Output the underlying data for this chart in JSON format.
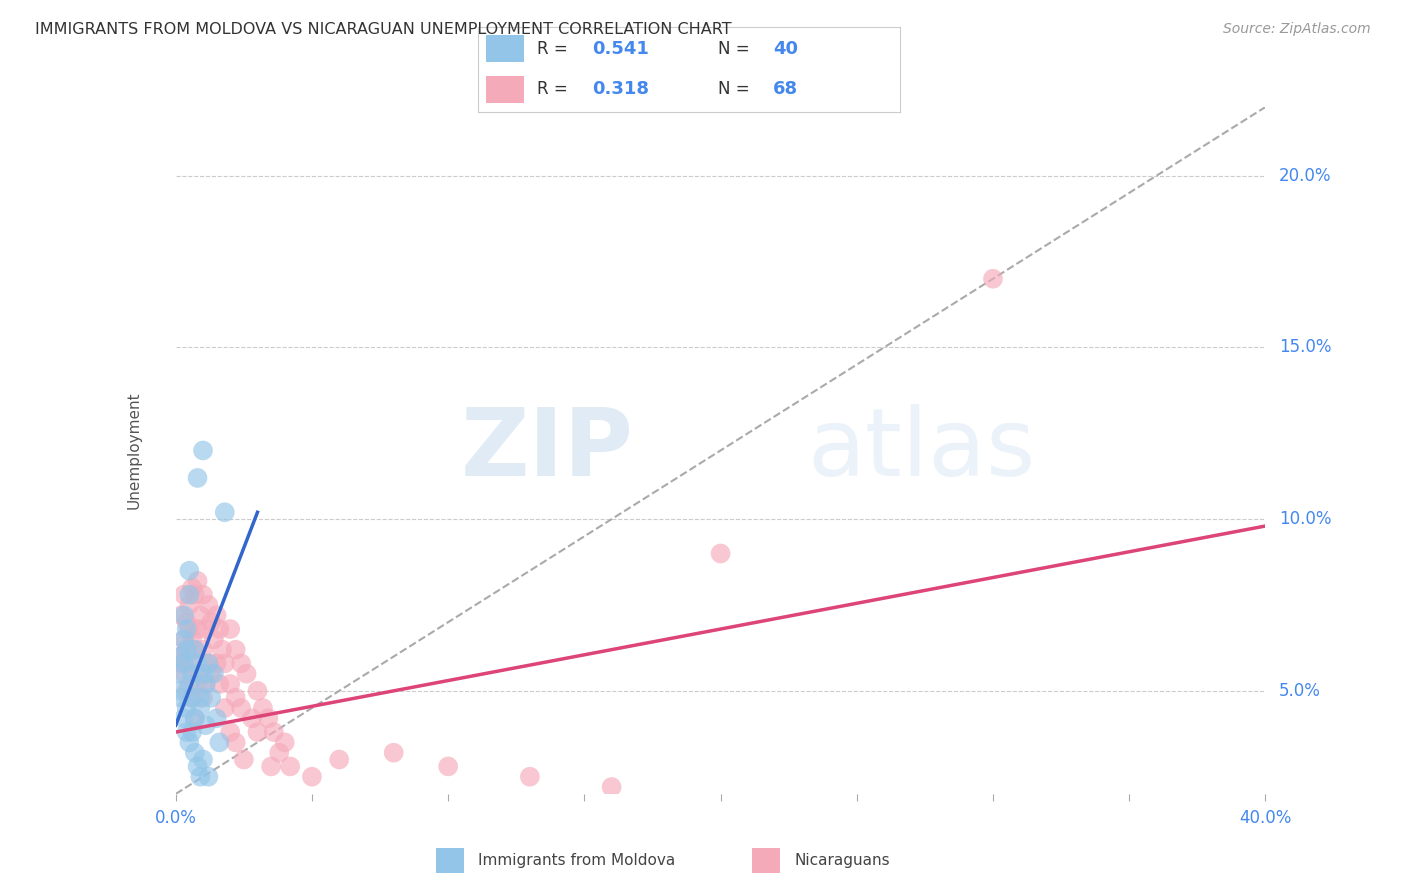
{
  "title": "IMMIGRANTS FROM MOLDOVA VS NICARAGUAN UNEMPLOYMENT CORRELATION CHART",
  "source": "Source: ZipAtlas.com",
  "ylabel": "Unemployment",
  "y_ticks": [
    0.05,
    0.1,
    0.15,
    0.2
  ],
  "y_tick_labels": [
    "5.0%",
    "10.0%",
    "15.0%",
    "20.0%"
  ],
  "xlim": [
    0.0,
    0.4
  ],
  "ylim": [
    0.02,
    0.22
  ],
  "blue_R": "0.541",
  "blue_N": "40",
  "pink_R": "0.318",
  "pink_N": "68",
  "legend_label_blue": "Immigrants from Moldova",
  "legend_label_pink": "Nicaraguans",
  "blue_color": "#92C5E8",
  "pink_color": "#F5AABA",
  "blue_line_color": "#3366CC",
  "pink_line_color": "#DD4477",
  "blue_line": [
    [
      0.0,
      0.04
    ],
    [
      0.03,
      0.102
    ]
  ],
  "pink_line": [
    [
      0.0,
      0.038
    ],
    [
      0.4,
      0.098
    ]
  ],
  "diag_line": [
    [
      0.0,
      0.02
    ],
    [
      0.4,
      0.22
    ]
  ],
  "blue_scatter": [
    [
      0.001,
      0.055
    ],
    [
      0.002,
      0.06
    ],
    [
      0.002,
      0.05
    ],
    [
      0.003,
      0.065
    ],
    [
      0.003,
      0.058
    ],
    [
      0.003,
      0.072
    ],
    [
      0.004,
      0.068
    ],
    [
      0.004,
      0.062
    ],
    [
      0.004,
      0.045
    ],
    [
      0.005,
      0.085
    ],
    [
      0.005,
      0.078
    ],
    [
      0.005,
      0.052
    ],
    [
      0.006,
      0.055
    ],
    [
      0.006,
      0.048
    ],
    [
      0.007,
      0.062
    ],
    [
      0.007,
      0.042
    ],
    [
      0.008,
      0.058
    ],
    [
      0.008,
      0.112
    ],
    [
      0.009,
      0.048
    ],
    [
      0.009,
      0.045
    ],
    [
      0.01,
      0.055
    ],
    [
      0.01,
      0.12
    ],
    [
      0.011,
      0.052
    ],
    [
      0.011,
      0.04
    ],
    [
      0.012,
      0.058
    ],
    [
      0.013,
      0.048
    ],
    [
      0.014,
      0.055
    ],
    [
      0.015,
      0.042
    ],
    [
      0.016,
      0.035
    ],
    [
      0.018,
      0.102
    ],
    [
      0.002,
      0.048
    ],
    [
      0.003,
      0.042
    ],
    [
      0.004,
      0.038
    ],
    [
      0.005,
      0.035
    ],
    [
      0.006,
      0.038
    ],
    [
      0.007,
      0.032
    ],
    [
      0.008,
      0.028
    ],
    [
      0.009,
      0.025
    ],
    [
      0.01,
      0.03
    ],
    [
      0.012,
      0.025
    ]
  ],
  "pink_scatter": [
    [
      0.001,
      0.06
    ],
    [
      0.002,
      0.058
    ],
    [
      0.002,
      0.072
    ],
    [
      0.003,
      0.065
    ],
    [
      0.003,
      0.078
    ],
    [
      0.003,
      0.055
    ],
    [
      0.004,
      0.07
    ],
    [
      0.004,
      0.062
    ],
    [
      0.004,
      0.05
    ],
    [
      0.005,
      0.075
    ],
    [
      0.005,
      0.068
    ],
    [
      0.005,
      0.058
    ],
    [
      0.006,
      0.08
    ],
    [
      0.006,
      0.065
    ],
    [
      0.006,
      0.048
    ],
    [
      0.007,
      0.078
    ],
    [
      0.007,
      0.062
    ],
    [
      0.007,
      0.042
    ],
    [
      0.008,
      0.082
    ],
    [
      0.008,
      0.068
    ],
    [
      0.008,
      0.052
    ],
    [
      0.009,
      0.072
    ],
    [
      0.009,
      0.055
    ],
    [
      0.01,
      0.078
    ],
    [
      0.01,
      0.062
    ],
    [
      0.01,
      0.048
    ],
    [
      0.011,
      0.068
    ],
    [
      0.011,
      0.052
    ],
    [
      0.012,
      0.075
    ],
    [
      0.012,
      0.058
    ],
    [
      0.013,
      0.07
    ],
    [
      0.013,
      0.055
    ],
    [
      0.014,
      0.065
    ],
    [
      0.015,
      0.072
    ],
    [
      0.015,
      0.058
    ],
    [
      0.016,
      0.068
    ],
    [
      0.016,
      0.052
    ],
    [
      0.017,
      0.062
    ],
    [
      0.018,
      0.058
    ],
    [
      0.018,
      0.045
    ],
    [
      0.02,
      0.068
    ],
    [
      0.02,
      0.052
    ],
    [
      0.02,
      0.038
    ],
    [
      0.022,
      0.062
    ],
    [
      0.022,
      0.048
    ],
    [
      0.022,
      0.035
    ],
    [
      0.024,
      0.058
    ],
    [
      0.024,
      0.045
    ],
    [
      0.025,
      0.03
    ],
    [
      0.026,
      0.055
    ],
    [
      0.028,
      0.042
    ],
    [
      0.03,
      0.05
    ],
    [
      0.03,
      0.038
    ],
    [
      0.032,
      0.045
    ],
    [
      0.034,
      0.042
    ],
    [
      0.035,
      0.028
    ],
    [
      0.036,
      0.038
    ],
    [
      0.038,
      0.032
    ],
    [
      0.04,
      0.035
    ],
    [
      0.042,
      0.028
    ],
    [
      0.05,
      0.025
    ],
    [
      0.06,
      0.03
    ],
    [
      0.08,
      0.032
    ],
    [
      0.1,
      0.028
    ],
    [
      0.13,
      0.025
    ],
    [
      0.16,
      0.022
    ],
    [
      0.2,
      0.09
    ],
    [
      0.3,
      0.17
    ]
  ],
  "watermark_zip": "ZIP",
  "watermark_atlas": "atlas",
  "background_color": "#FFFFFF",
  "grid_color": "#CCCCCC",
  "title_color": "#333333",
  "axis_label_color": "#4488EE",
  "legend_text_color": "#4488EE",
  "legend_r_color": "#333333"
}
